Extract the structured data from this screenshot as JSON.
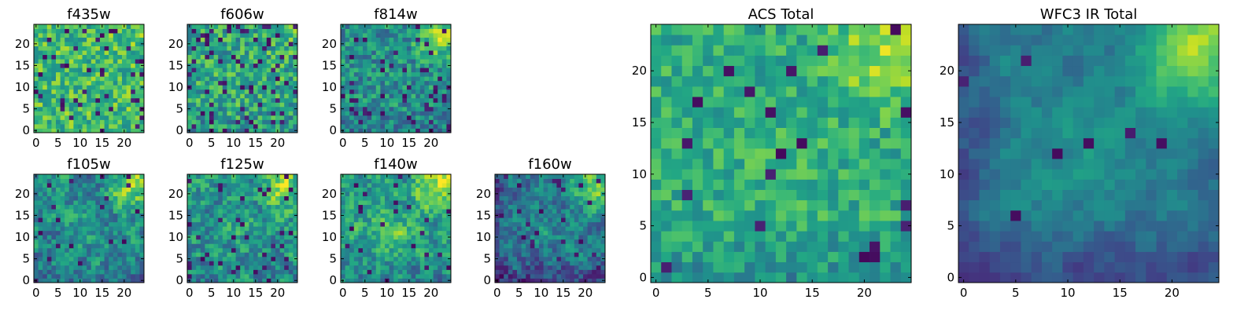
{
  "figure": {
    "type": "image-grid"
  },
  "chart_data": [
    {
      "type": "heatmap",
      "title": "f435w",
      "colormap": "viridis",
      "grid_size": [
        25,
        25
      ],
      "xlim": [
        -0.5,
        24.5
      ],
      "ylim": [
        -0.5,
        24.5
      ],
      "xticks": [
        0,
        5,
        10,
        15,
        20
      ],
      "yticks": [
        0,
        5,
        10,
        15,
        20
      ],
      "grid": false,
      "pattern": {
        "seed": 11,
        "base": 0.68,
        "noise": 0.42,
        "smooth": 0,
        "corner": 0.05,
        "center": 0.0,
        "bottom": 0.0,
        "left": 0.0,
        "dark": 0.08
      }
    },
    {
      "type": "heatmap",
      "title": "f606w",
      "colormap": "viridis",
      "grid_size": [
        25,
        25
      ],
      "xlim": [
        -0.5,
        24.5
      ],
      "ylim": [
        -0.5,
        24.5
      ],
      "xticks": [
        0,
        5,
        10,
        15,
        20
      ],
      "yticks": [
        0,
        5,
        10,
        15,
        20
      ],
      "grid": false,
      "pattern": {
        "seed": 23,
        "base": 0.6,
        "noise": 0.45,
        "smooth": 0,
        "corner": 0.08,
        "center": 0.0,
        "bottom": 0.08,
        "left": 0.0,
        "dark": 0.09
      }
    },
    {
      "type": "heatmap",
      "title": "f814w",
      "colormap": "viridis",
      "grid_size": [
        25,
        25
      ],
      "xlim": [
        -0.5,
        24.5
      ],
      "ylim": [
        -0.5,
        24.5
      ],
      "xticks": [
        0,
        5,
        10,
        15,
        20
      ],
      "yticks": [
        0,
        5,
        10,
        15,
        20
      ],
      "grid": false,
      "pattern": {
        "seed": 37,
        "base": 0.5,
        "noise": 0.4,
        "smooth": 0,
        "corner": 0.35,
        "center": 0.0,
        "bottom": 0.1,
        "left": 0.0,
        "dark": 0.08
      }
    },
    {
      "type": "heatmap",
      "title": "f105w",
      "colormap": "viridis",
      "grid_size": [
        25,
        25
      ],
      "xlim": [
        -0.5,
        24.5
      ],
      "ylim": [
        -0.5,
        24.5
      ],
      "xticks": [
        0,
        5,
        10,
        15,
        20
      ],
      "yticks": [
        0,
        5,
        10,
        15,
        20
      ],
      "grid": false,
      "pattern": {
        "seed": 41,
        "base": 0.47,
        "noise": 0.36,
        "smooth": 1,
        "corner": 0.42,
        "center": 0.08,
        "bottom": 0.08,
        "left": 0.0,
        "dark": 0.04
      }
    },
    {
      "type": "heatmap",
      "title": "f125w",
      "colormap": "viridis",
      "grid_size": [
        25,
        25
      ],
      "xlim": [
        -0.5,
        24.5
      ],
      "ylim": [
        -0.5,
        24.5
      ],
      "xticks": [
        0,
        5,
        10,
        15,
        20
      ],
      "yticks": [
        0,
        5,
        10,
        15,
        20
      ],
      "grid": false,
      "pattern": {
        "seed": 53,
        "base": 0.52,
        "noise": 0.38,
        "smooth": 1,
        "corner": 0.4,
        "center": 0.05,
        "bottom": 0.08,
        "left": 0.0,
        "dark": 0.05
      }
    },
    {
      "type": "heatmap",
      "title": "f140w",
      "colormap": "viridis",
      "grid_size": [
        25,
        25
      ],
      "xlim": [
        -0.5,
        24.5
      ],
      "ylim": [
        -0.5,
        24.5
      ],
      "xticks": [
        0,
        5,
        10,
        15,
        20
      ],
      "yticks": [
        0,
        5,
        10,
        15,
        20
      ],
      "grid": false,
      "pattern": {
        "seed": 67,
        "base": 0.56,
        "noise": 0.34,
        "smooth": 1,
        "corner": 0.38,
        "center": 0.14,
        "bottom": 0.12,
        "left": 0.0,
        "dark": 0.03
      }
    },
    {
      "type": "heatmap",
      "title": "f160w",
      "colormap": "viridis",
      "grid_size": [
        25,
        25
      ],
      "xlim": [
        -0.5,
        24.5
      ],
      "ylim": [
        -0.5,
        24.5
      ],
      "xticks": [
        0,
        5,
        10,
        15,
        20
      ],
      "yticks": [
        0,
        5,
        10,
        15,
        20
      ],
      "grid": false,
      "pattern": {
        "seed": 79,
        "base": 0.4,
        "noise": 0.32,
        "smooth": 1,
        "corner": 0.45,
        "center": 0.1,
        "bottom": 0.2,
        "left": 0.12,
        "dark": 0.04
      }
    },
    {
      "type": "heatmap",
      "title": "ACS Total",
      "colormap": "viridis",
      "grid_size": [
        25,
        25
      ],
      "xlim": [
        -0.5,
        24.5
      ],
      "ylim": [
        -0.5,
        24.5
      ],
      "xticks": [
        0,
        5,
        10,
        15,
        20
      ],
      "yticks": [
        0,
        5,
        10,
        15,
        20
      ],
      "grid": false,
      "pattern": {
        "seed": 97,
        "base": 0.62,
        "noise": 0.3,
        "smooth": 0,
        "corner": 0.25,
        "center": 0.05,
        "bottom": 0.12,
        "left": 0.0,
        "dark": 0.035
      }
    },
    {
      "type": "heatmap",
      "title": "WFC3 IR Total",
      "colormap": "viridis",
      "grid_size": [
        25,
        25
      ],
      "xlim": [
        -0.5,
        24.5
      ],
      "ylim": [
        -0.5,
        24.5
      ],
      "xticks": [
        0,
        5,
        10,
        15,
        20
      ],
      "yticks": [
        0,
        5,
        10,
        15,
        20
      ],
      "grid": false,
      "pattern": {
        "seed": 113,
        "base": 0.42,
        "noise": 0.16,
        "smooth": 2,
        "corner": 0.5,
        "center": 0.14,
        "bottom": 0.2,
        "left": 0.15,
        "dark": 0.015
      }
    }
  ]
}
